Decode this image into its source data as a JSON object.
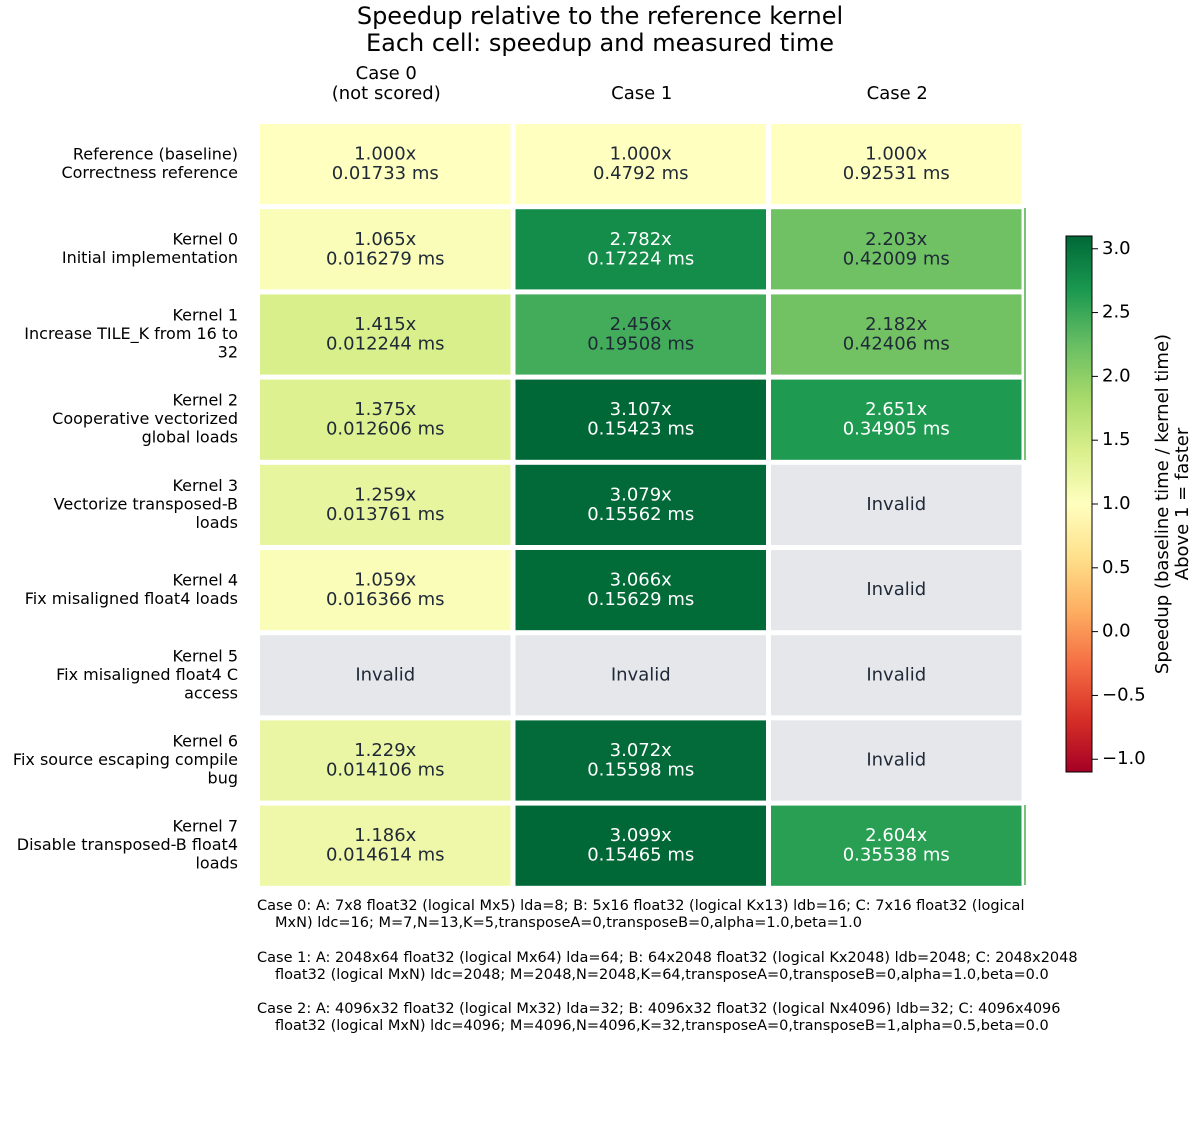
{
  "chart_data": {
    "type": "heatmap",
    "title": [
      "Speedup relative to the reference kernel",
      "Each cell: speedup and measured time"
    ],
    "columns": [
      {
        "label": [
          "Case 0",
          "(not scored)"
        ]
      },
      {
        "label": [
          "Case 1"
        ]
      },
      {
        "label": [
          "Case 2"
        ]
      }
    ],
    "rows": [
      {
        "label": [
          "Reference (baseline)",
          "Correctness reference"
        ],
        "cells": [
          {
            "speedup": 1.0,
            "speedup_text": "1.000x",
            "time_text": "0.01733 ms"
          },
          {
            "speedup": 1.0,
            "speedup_text": "1.000x",
            "time_text": "0.4792 ms"
          },
          {
            "speedup": 1.0,
            "speedup_text": "1.000x",
            "time_text": "0.92531 ms"
          }
        ]
      },
      {
        "label": [
          "Kernel 0",
          "Initial implementation"
        ],
        "cells": [
          {
            "speedup": 1.065,
            "speedup_text": "1.065x",
            "time_text": "0.016279 ms"
          },
          {
            "speedup": 2.782,
            "speedup_text": "2.782x",
            "time_text": "0.17224 ms"
          },
          {
            "speedup": 2.203,
            "speedup_text": "2.203x",
            "time_text": "0.42009 ms"
          }
        ]
      },
      {
        "label": [
          "Kernel 1",
          "Increase TILE_K from 16 to",
          "32"
        ],
        "cells": [
          {
            "speedup": 1.415,
            "speedup_text": "1.415x",
            "time_text": "0.012244 ms"
          },
          {
            "speedup": 2.456,
            "speedup_text": "2.456x",
            "time_text": "0.19508 ms"
          },
          {
            "speedup": 2.182,
            "speedup_text": "2.182x",
            "time_text": "0.42406 ms"
          }
        ]
      },
      {
        "label": [
          "Kernel 2",
          "Cooperative vectorized",
          "global loads"
        ],
        "cells": [
          {
            "speedup": 1.375,
            "speedup_text": "1.375x",
            "time_text": "0.012606 ms"
          },
          {
            "speedup": 3.107,
            "speedup_text": "3.107x",
            "time_text": "0.15423 ms"
          },
          {
            "speedup": 2.651,
            "speedup_text": "2.651x",
            "time_text": "0.34905 ms"
          }
        ]
      },
      {
        "label": [
          "Kernel 3",
          "Vectorize transposed-B",
          "loads"
        ],
        "cells": [
          {
            "speedup": 1.259,
            "speedup_text": "1.259x",
            "time_text": "0.013761 ms"
          },
          {
            "speedup": 3.079,
            "speedup_text": "3.079x",
            "time_text": "0.15562 ms"
          },
          {
            "speedup": null,
            "speedup_text": "Invalid",
            "time_text": ""
          }
        ]
      },
      {
        "label": [
          "Kernel 4",
          "Fix misaligned float4 loads"
        ],
        "cells": [
          {
            "speedup": 1.059,
            "speedup_text": "1.059x",
            "time_text": "0.016366 ms"
          },
          {
            "speedup": 3.066,
            "speedup_text": "3.066x",
            "time_text": "0.15629 ms"
          },
          {
            "speedup": null,
            "speedup_text": "Invalid",
            "time_text": ""
          }
        ]
      },
      {
        "label": [
          "Kernel 5",
          "Fix misaligned float4 C",
          "access"
        ],
        "cells": [
          {
            "speedup": null,
            "speedup_text": "Invalid",
            "time_text": ""
          },
          {
            "speedup": null,
            "speedup_text": "Invalid",
            "time_text": ""
          },
          {
            "speedup": null,
            "speedup_text": "Invalid",
            "time_text": ""
          }
        ]
      },
      {
        "label": [
          "Kernel 6",
          "Fix source escaping compile",
          "bug"
        ],
        "cells": [
          {
            "speedup": 1.229,
            "speedup_text": "1.229x",
            "time_text": "0.014106 ms"
          },
          {
            "speedup": 3.072,
            "speedup_text": "3.072x",
            "time_text": "0.15598 ms"
          },
          {
            "speedup": null,
            "speedup_text": "Invalid",
            "time_text": ""
          }
        ]
      },
      {
        "label": [
          "Kernel 7",
          "Disable transposed-B float4",
          "loads"
        ],
        "cells": [
          {
            "speedup": 1.186,
            "speedup_text": "1.186x",
            "time_text": "0.014614 ms"
          },
          {
            "speedup": 3.099,
            "speedup_text": "3.099x",
            "time_text": "0.15465 ms"
          },
          {
            "speedup": 2.604,
            "speedup_text": "2.604x",
            "time_text": "0.35538 ms"
          }
        ]
      }
    ],
    "colorbar": {
      "label": [
        "Speedup (baseline time / kernel time)",
        "Above 1 = faster"
      ],
      "range": [
        -1.1,
        3.1
      ],
      "colormap": "RdYlGn",
      "ticks": [
        {
          "value": 3.0,
          "label": "3.0"
        },
        {
          "value": 2.5,
          "label": "2.5"
        },
        {
          "value": 2.0,
          "label": "2.0"
        },
        {
          "value": 1.5,
          "label": "1.5"
        },
        {
          "value": 1.0,
          "label": "1.0"
        },
        {
          "value": 0.5,
          "label": "0.5"
        },
        {
          "value": 0.0,
          "label": "0.0"
        },
        {
          "value": -0.5,
          "label": "−0.5"
        },
        {
          "value": -1.0,
          "label": "−1.0"
        }
      ]
    },
    "invalid_color": "#e5e7eb",
    "notes": [
      [
        "Case 0: A: 7x8 float32 (logical Mx5) lda=8; B: 5x16 float32 (logical Kx13) ldb=16; C: 7x16 float32 (logical",
        "MxN) ldc=16; M=7,N=13,K=5,transposeA=0,transposeB=0,alpha=1.0,beta=1.0"
      ],
      [
        "Case 1: A: 2048x64 float32 (logical Mx64) lda=64; B: 64x2048 float32 (logical Kx2048) ldb=2048; C: 2048x2048",
        "float32 (logical MxN) ldc=2048; M=2048,N=2048,K=64,transposeA=0,transposeB=0,alpha=1.0,beta=0.0"
      ],
      [
        "Case 2: A: 4096x32 float32 (logical Mx32) lda=32; B: 4096x32 float32 (logical Nx4096) ldb=32; C: 4096x4096",
        "float32 (logical MxN) ldc=4096; M=4096,N=4096,K=32,transposeA=0,transposeB=1,alpha=0.5,beta=0.0"
      ]
    ]
  }
}
